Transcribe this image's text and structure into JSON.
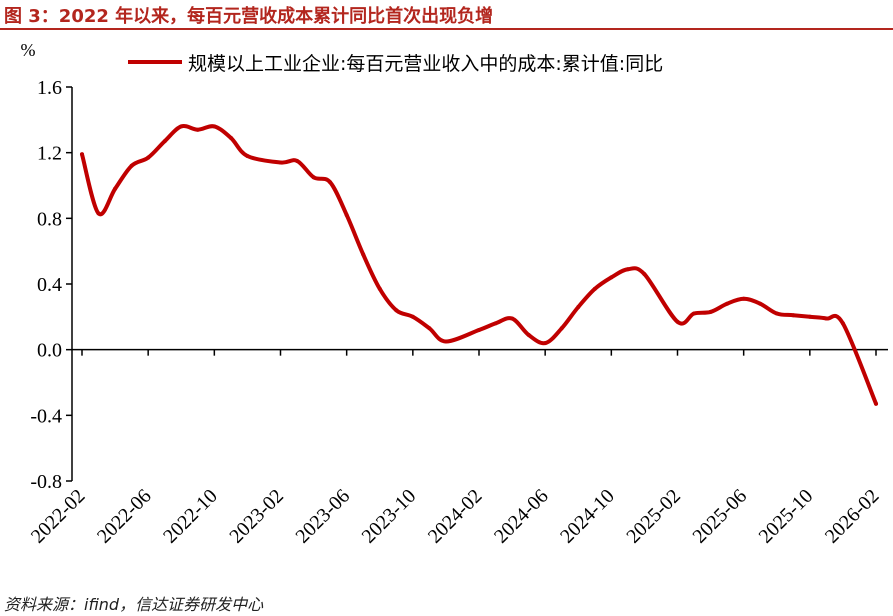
{
  "header": {
    "title": "图 3：2022 年以来，每百元营收成本累计同比首次出现负增"
  },
  "footer": {
    "source": "资料来源：ifind，信达证券研发中心"
  },
  "colors": {
    "title": "#b3261e",
    "series": "#c00000",
    "axis": "#000000"
  },
  "chart_data": {
    "type": "line",
    "title": "",
    "unit_label": "%",
    "ylim": [
      -0.8,
      1.6
    ],
    "yticks": [
      "1.6",
      "1.2",
      "0.8",
      "0.4",
      "0.0",
      "-0.4",
      "-0.8"
    ],
    "ytick_values": [
      1.6,
      1.2,
      0.8,
      0.4,
      0.0,
      -0.4,
      -0.8
    ],
    "xticks": [
      "2022-02",
      "2022-06",
      "2022-10",
      "2023-02",
      "2023-06",
      "2023-10",
      "2024-02",
      "2024-06",
      "2024-10",
      "2025-02",
      "2025-06",
      "2025-10",
      "2026-02"
    ],
    "grid": false,
    "legend_position": "top",
    "series": [
      {
        "name": "规模以上工业企业:每百元营业收入中的成本:累计值:同比",
        "x": [
          "2022-02",
          "2022-03",
          "2022-04",
          "2022-05",
          "2022-06",
          "2022-07",
          "2022-08",
          "2022-09",
          "2022-10",
          "2022-11",
          "2022-12",
          "2023-02",
          "2023-03",
          "2023-04",
          "2023-05",
          "2023-06",
          "2023-07",
          "2023-08",
          "2023-09",
          "2023-10",
          "2023-11",
          "2023-12",
          "2024-02",
          "2024-03",
          "2024-04",
          "2024-05",
          "2024-06",
          "2024-07",
          "2024-08",
          "2024-09",
          "2024-10",
          "2024-11",
          "2024-12",
          "2025-02",
          "2025-03",
          "2025-04",
          "2025-05",
          "2025-06",
          "2025-07",
          "2025-08",
          "2025-09",
          "2025-10",
          "2025-11",
          "2025-12",
          "2026-02"
        ],
        "values": [
          1.19,
          0.83,
          0.98,
          1.12,
          1.17,
          1.27,
          1.36,
          1.34,
          1.36,
          1.29,
          1.18,
          1.14,
          1.15,
          1.05,
          1.02,
          0.82,
          0.58,
          0.37,
          0.24,
          0.2,
          0.13,
          0.05,
          0.12,
          0.16,
          0.19,
          0.09,
          0.04,
          0.13,
          0.26,
          0.37,
          0.44,
          0.49,
          0.46,
          0.17,
          0.22,
          0.23,
          0.28,
          0.31,
          0.28,
          0.22,
          0.21,
          0.2,
          0.19,
          0.16,
          -0.33
        ]
      }
    ]
  }
}
